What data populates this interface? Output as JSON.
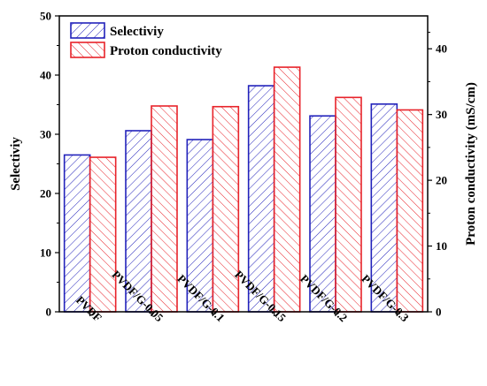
{
  "chart_data": {
    "type": "bar",
    "categories": [
      "PVDF",
      "PVDF/G-0.05",
      "PVDF/G-0.1",
      "PVDF/G-0.15",
      "PVDF/G-0.2",
      "PVDF/G-0.3"
    ],
    "series": [
      {
        "name": "Selectiviy",
        "axis": "left",
        "color": "#2222bb",
        "values": [
          26.5,
          30.6,
          29.1,
          38.2,
          33.1,
          35.1
        ]
      },
      {
        "name": "Proton conductivity",
        "axis": "right",
        "color": "#e8232a",
        "values": [
          23.5,
          31.3,
          31.2,
          37.2,
          32.6,
          30.7
        ]
      }
    ],
    "ylabel": "Selectiviy",
    "ylabel_right": "Proton conductivity (mS/cm)",
    "ylim": [
      0,
      50
    ],
    "ylim_right": [
      0,
      45
    ],
    "yticks": [
      0,
      10,
      20,
      30,
      40,
      50
    ],
    "yticks_right": [
      0,
      10,
      20,
      30,
      40
    ],
    "legend": "top-left",
    "grid": false
  }
}
